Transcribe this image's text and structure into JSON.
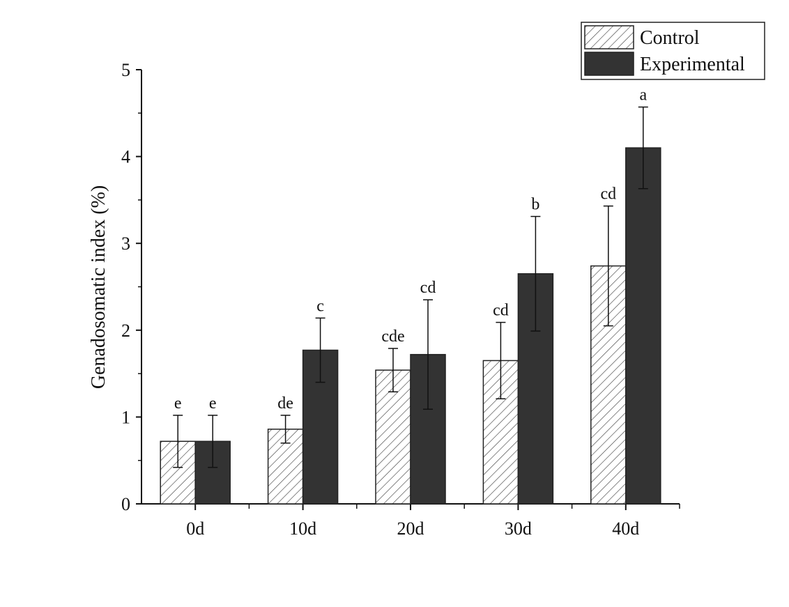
{
  "chart_data": {
    "type": "bar",
    "title": "",
    "xlabel": "",
    "ylabel": "Genadosomatic index (%)",
    "ylim": [
      0,
      5
    ],
    "yticks": [
      "0",
      "1",
      "2",
      "3",
      "4",
      "5"
    ],
    "categories": [
      "0d",
      "10d",
      "20d",
      "30d",
      "40d"
    ],
    "legend_position": "top-right",
    "grid": false,
    "series": [
      {
        "name": "Control",
        "pattern": "hatched",
        "color": "#333333",
        "values": [
          0.72,
          0.86,
          1.54,
          1.65,
          2.74
        ],
        "errors": [
          0.3,
          0.16,
          0.25,
          0.44,
          0.69
        ],
        "labels": [
          "e",
          "de",
          "cde",
          "cd",
          "cd"
        ]
      },
      {
        "name": "Experimental",
        "pattern": "solid",
        "color": "#333333",
        "values": [
          0.72,
          1.77,
          1.72,
          2.65,
          4.1
        ],
        "errors": [
          0.3,
          0.37,
          0.63,
          0.66,
          0.47
        ],
        "labels": [
          "e",
          "c",
          "cd",
          "b",
          "a"
        ]
      }
    ]
  }
}
